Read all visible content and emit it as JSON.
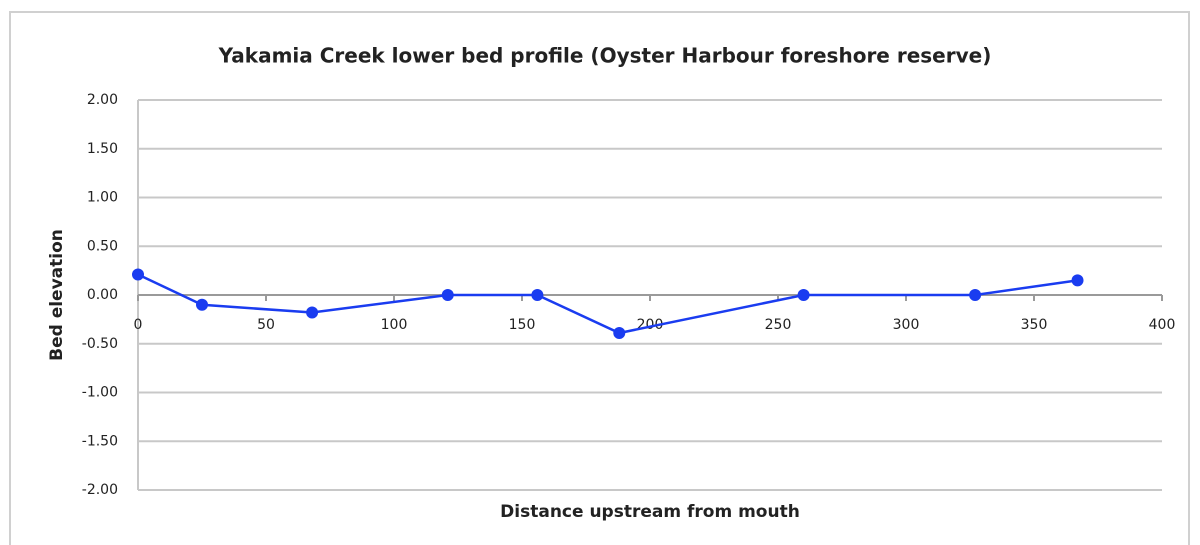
{
  "chart_data": {
    "type": "line",
    "title": "Yakamia Creek lower bed profile (Oyster Harbour foreshore reserve)",
    "x_label": "Distance upstream from mouth",
    "y_label": "Bed elevation",
    "x": [
      0,
      25,
      68,
      121,
      156,
      188,
      260,
      327,
      367
    ],
    "values": [
      0.21,
      -0.1,
      -0.18,
      0.0,
      0.0,
      -0.39,
      0.0,
      0.0,
      0.15
    ],
    "color": "#1a3cf0",
    "xlim": [
      0,
      400
    ],
    "xticks": [
      0,
      50,
      100,
      150,
      200,
      250,
      300,
      350,
      400
    ],
    "ylim": [
      -2,
      2
    ],
    "yticks": [
      {
        "value": -2,
        "label": "-2.00"
      },
      {
        "value": -1.5,
        "label": "-1.50"
      },
      {
        "value": -1,
        "label": "-1.00"
      },
      {
        "value": -0.5,
        "label": "-0.50"
      },
      {
        "value": 0,
        "label": "0.00"
      },
      {
        "value": 0.5,
        "label": "0.50"
      },
      {
        "value": 1,
        "label": "1.00"
      },
      {
        "value": 1.5,
        "label": "1.50"
      },
      {
        "value": 2,
        "label": "2.00"
      }
    ],
    "grid": true
  }
}
